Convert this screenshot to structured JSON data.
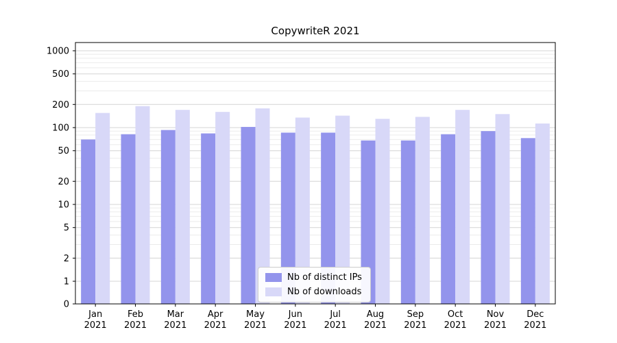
{
  "title": "CopywriteR 2021",
  "chart_data": {
    "type": "bar",
    "title": "CopywriteR 2021",
    "categories": [
      "Jan",
      "Feb",
      "Mar",
      "Apr",
      "May",
      "Jun",
      "Jul",
      "Aug",
      "Sep",
      "Oct",
      "Nov",
      "Dec"
    ],
    "year": "2021",
    "series": [
      {
        "name": "Nb of distinct IPs",
        "color": "#9394ec",
        "values": [
          70,
          82,
          93,
          84,
          102,
          86,
          86,
          68,
          68,
          82,
          90,
          73
        ]
      },
      {
        "name": "Nb of downloads",
        "color": "#d8d8f8",
        "values": [
          155,
          190,
          170,
          160,
          178,
          135,
          143,
          130,
          138,
          170,
          150,
          113
        ]
      }
    ],
    "yscale": "symlog",
    "yticks": [
      0,
      1,
      2,
      5,
      10,
      20,
      50,
      100,
      200,
      500,
      1000
    ],
    "ylim": [
      0,
      1200
    ],
    "grid": true,
    "legend_position": "lower center"
  }
}
